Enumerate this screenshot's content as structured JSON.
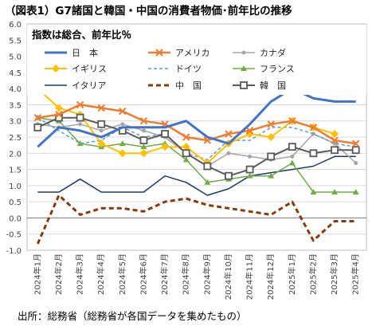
{
  "chart_data": {
    "type": "line",
    "title": "（図表1）G7諸国と韓国・中国の消費者物価･前年比の推移",
    "subtitle": "指数は総合、前年比％",
    "source": "出所：総務省（総務省が各国データを集めたもの）",
    "ylim": [
      -1.0,
      6.0
    ],
    "yticks": [
      "6.0",
      "5.5",
      "5.0",
      "4.5",
      "4.0",
      "3.5",
      "3.0",
      "2.5",
      "2.0",
      "1.5",
      "1.0",
      "0.5",
      "0.0",
      "-0.5",
      "-1.0"
    ],
    "categories": [
      "2024年1月",
      "2024年2月",
      "2024年3月",
      "2024年4月",
      "2024年5月",
      "2024年6月",
      "2024年7月",
      "2024年8月",
      "2024年9月",
      "2024年10月",
      "2024年11月",
      "2024年12月",
      "2025年1月",
      "2025年2月",
      "2025年3月",
      "2025年4月"
    ],
    "grid": true,
    "legend_position": "top",
    "series": [
      {
        "name": "日　本",
        "color": "#4472C4",
        "style": "solid",
        "width": 3,
        "marker": "none",
        "values": [
          2.2,
          2.8,
          2.7,
          2.5,
          2.8,
          2.8,
          2.8,
          3.0,
          2.5,
          2.3,
          2.9,
          3.6,
          4.0,
          3.7,
          3.6,
          3.6
        ]
      },
      {
        "name": "アメリカ",
        "color": "#ED7D31",
        "style": "solid",
        "width": 2.5,
        "marker": "x",
        "values": [
          3.1,
          3.2,
          3.5,
          3.4,
          3.3,
          3.0,
          2.9,
          2.5,
          2.4,
          2.6,
          2.7,
          2.9,
          3.0,
          2.8,
          2.4,
          2.3
        ]
      },
      {
        "name": "カナダ",
        "color": "#A5A5A5",
        "style": "solid",
        "width": 1.5,
        "marker": "circle",
        "values": [
          2.9,
          2.8,
          2.9,
          2.7,
          2.9,
          2.7,
          2.5,
          2.0,
          1.6,
          2.0,
          1.9,
          1.8,
          1.9,
          2.6,
          2.3,
          1.7
        ]
      },
      {
        "name": "イギリス",
        "color": "#FFC000",
        "style": "solid",
        "width": 2,
        "marker": "diamond",
        "values": [
          4.0,
          3.4,
          3.2,
          2.3,
          2.0,
          2.0,
          2.2,
          2.2,
          1.7,
          2.3,
          2.6,
          2.5,
          3.0,
          2.8,
          2.6,
          null
        ]
      },
      {
        "name": "ドイツ",
        "color": "#5B9BD5",
        "style": "dashed",
        "width": 1.5,
        "marker": "none",
        "values": [
          3.1,
          2.7,
          2.3,
          2.4,
          2.8,
          2.5,
          2.6,
          2.0,
          1.8,
          2.4,
          2.4,
          2.8,
          2.8,
          2.6,
          2.3,
          2.2
        ]
      },
      {
        "name": "フランス",
        "color": "#70AD47",
        "style": "solid",
        "width": 1.5,
        "marker": "triangle",
        "values": [
          3.1,
          3.0,
          2.3,
          2.2,
          2.3,
          2.2,
          2.3,
          1.8,
          1.1,
          1.2,
          1.3,
          1.3,
          1.7,
          0.8,
          0.8,
          0.8
        ]
      },
      {
        "name": "イタリア",
        "color": "#1F3864",
        "style": "solid",
        "width": 1.5,
        "marker": "none",
        "values": [
          0.8,
          0.8,
          1.2,
          0.8,
          0.8,
          0.8,
          1.3,
          1.1,
          0.7,
          0.9,
          1.3,
          1.4,
          1.5,
          1.6,
          1.9,
          1.9
        ]
      },
      {
        "name": "中　国",
        "color": "#843C0C",
        "style": "dashed",
        "width": 3,
        "marker": "none",
        "values": [
          -0.8,
          0.7,
          0.1,
          0.3,
          0.3,
          0.2,
          0.5,
          0.6,
          0.4,
          0.3,
          0.2,
          0.1,
          0.5,
          -0.7,
          -0.1,
          -0.1
        ]
      },
      {
        "name": "韓　国",
        "color": "#595959",
        "style": "solid",
        "width": 2,
        "marker": "square",
        "values": [
          2.8,
          3.1,
          3.1,
          2.9,
          2.7,
          2.4,
          2.6,
          2.0,
          1.6,
          1.3,
          1.5,
          1.9,
          2.2,
          2.0,
          2.1,
          2.1
        ]
      }
    ]
  }
}
